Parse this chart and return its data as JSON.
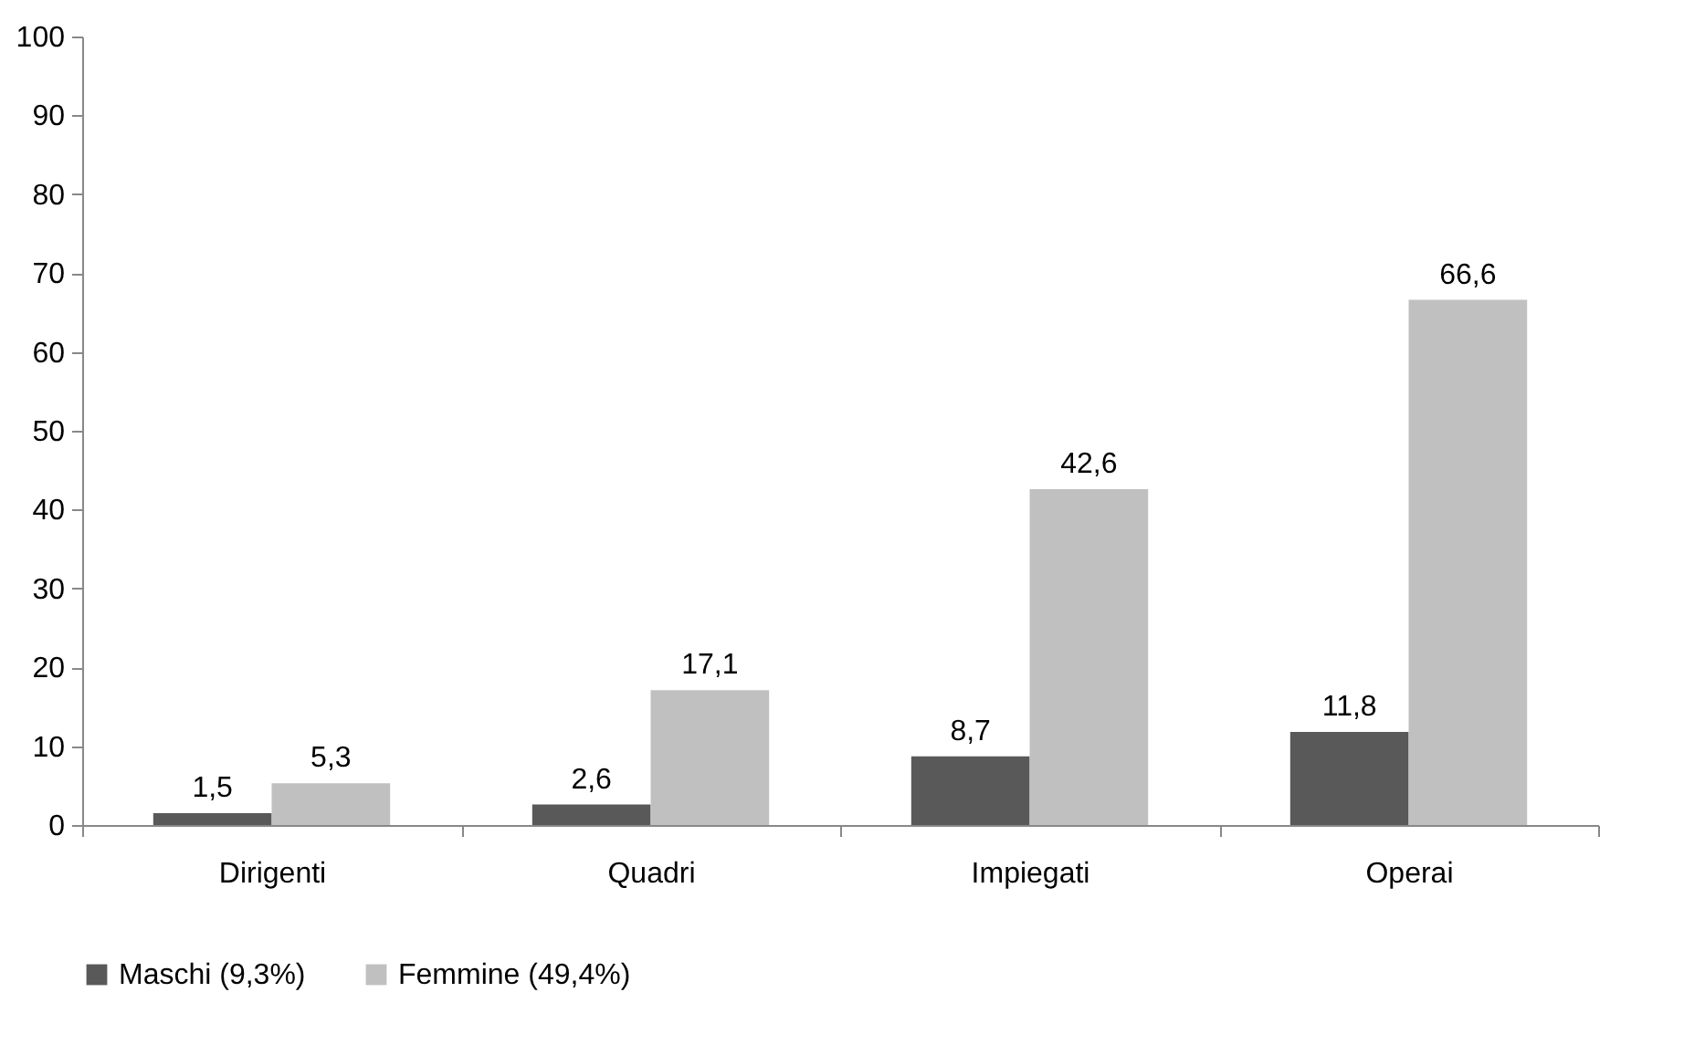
{
  "chart_data": {
    "type": "bar",
    "categories": [
      "Dirigenti",
      "Quadri",
      "Impiegati",
      "Operai"
    ],
    "series": [
      {
        "name": "Maschi (9,3%)",
        "color": "#595959",
        "values": [
          1.5,
          2.6,
          8.7,
          11.8
        ],
        "value_labels": [
          "1,5",
          "2,6",
          "8,7",
          "11,8"
        ]
      },
      {
        "name": "Femmine (49,4%)",
        "color": "#c0c0c0",
        "values": [
          5.3,
          17.1,
          42.6,
          66.6
        ],
        "value_labels": [
          "5,3",
          "17,1",
          "42,6",
          "66,6"
        ]
      }
    ],
    "ylim": [
      0,
      100
    ],
    "yticks": [
      0,
      10,
      20,
      30,
      40,
      50,
      60,
      70,
      80,
      90,
      100
    ],
    "grid": false,
    "legend": "bottom"
  }
}
